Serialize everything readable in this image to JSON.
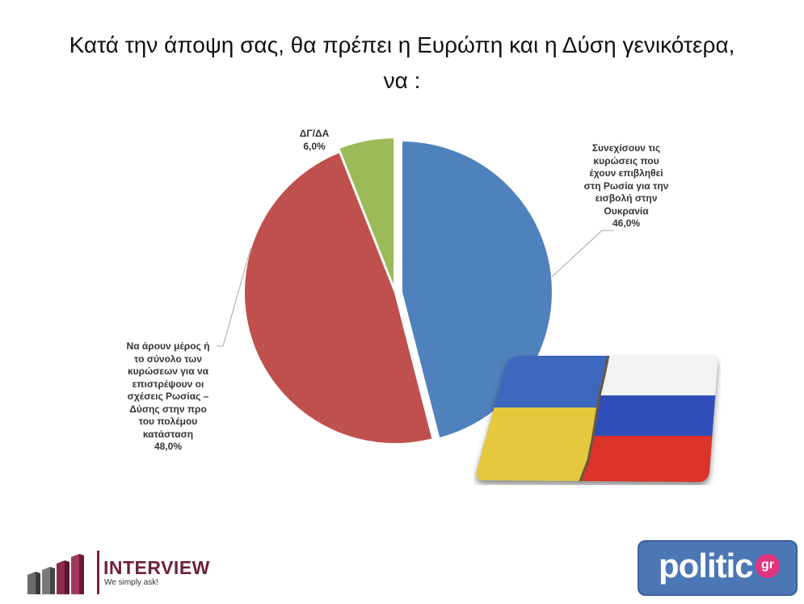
{
  "title": {
    "line1": "Κατά την άποψη σας, θα πρέπει η Ευρώπη και η Δύση γενικότερα,",
    "line2": "να :"
  },
  "chart_data": {
    "type": "pie",
    "slices": [
      {
        "label_lines": [
          "Συνεχίσουν τις",
          "κυρώσεις που",
          "έχουν επιβληθεί",
          "στη Ρωσία για την",
          "εισβολή στην",
          "Ουκρανία"
        ],
        "value": 46.0,
        "value_label": "46,0%",
        "color": "#4f81bd"
      },
      {
        "label_lines": [
          "Να άρουν μέρος ή",
          "το σύνολο των",
          "κυρώσεων για να",
          "επιστρέψουν οι",
          "σχέσεις Ρωσίας –",
          "Δύσης στην προ",
          "του πολέμου",
          "κατάσταση"
        ],
        "value": 48.0,
        "value_label": "48,0%",
        "color": "#c0504d"
      },
      {
        "label_lines": [
          "ΔΓ/ΔΑ"
        ],
        "value": 6.0,
        "value_label": "6,0%",
        "color": "#9bbb59"
      }
    ]
  },
  "logos": {
    "interview_name": "INTERVIEW",
    "interview_tagline": "We simply ask!",
    "politic_name": "politic",
    "politic_suffix": "gr"
  },
  "flag_colors": {
    "ukraine_blue": "#2d5bb8",
    "ukraine_yellow": "#e3c42e",
    "russia_white": "#f1f1f1",
    "russia_blue": "#1f3fb5",
    "russia_red": "#d9221a"
  }
}
